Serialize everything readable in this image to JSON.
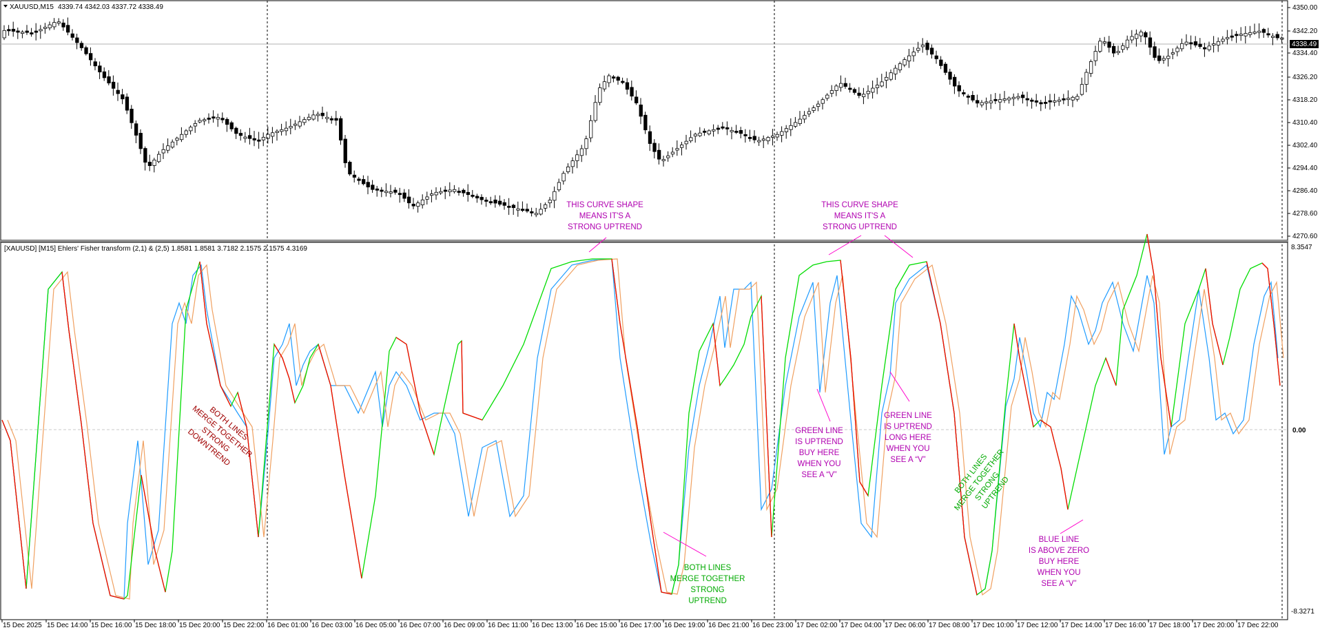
{
  "main_header": {
    "symbol": "XAUUSD,M15",
    "ohlc": "4339.74 4342.03 4337.72 4338.49"
  },
  "indicator_header": {
    "text": "[XAUUSD] [M15] Ehlers' Fisher transform (2,1) & (2,5) 1.8581 1.8581 3.7182 2.1575 2.1575 4.3169"
  },
  "price_axis": {
    "labels": [
      "4350.00",
      "4342.20",
      "4334.40",
      "4326.20",
      "4318.20",
      "4310.40",
      "4302.40",
      "4294.40",
      "4286.40",
      "4278.60",
      "4270.60"
    ],
    "current_price": "4338.49"
  },
  "indicator_axis": {
    "top": "8.3547",
    "zero": "0.00",
    "bottom": "-8.3271"
  },
  "time_axis": {
    "labels": [
      "15 Dec 2025",
      "15 Dec 14:00",
      "15 Dec 16:00",
      "15 Dec 18:00",
      "15 Dec 20:00",
      "15 Dec 22:00",
      "16 Dec 01:00",
      "16 Dec 03:00",
      "16 Dec 05:00",
      "16 Dec 07:00",
      "16 Dec 09:00",
      "16 Dec 11:00",
      "16 Dec 13:00",
      "16 Dec 15:00",
      "16 Dec 17:00",
      "16 Dec 19:00",
      "16 Dec 21:00",
      "16 Dec 23:00",
      "17 Dec 02:00",
      "17 Dec 04:00",
      "17 Dec 06:00",
      "17 Dec 08:00",
      "17 Dec 10:00",
      "17 Dec 12:00",
      "17 Dec 14:00",
      "17 Dec 16:00",
      "17 Dec 18:00",
      "17 Dec 20:00",
      "17 Dec 22:00"
    ]
  },
  "annotations": {
    "strong_uptrend_1": [
      "THIS  CURVE SHAPE",
      "MEANS IT'S A",
      "STRONG UPTREND"
    ],
    "strong_uptrend_2": [
      "THIS  CURVE SHAPE",
      "MEANS IT'S A",
      "STRONG UPTREND"
    ],
    "downtrend": [
      "BOTH LINES",
      "MERGE  TOGETHER",
      "STRONG",
      "DOWNTREND"
    ],
    "merge_uptrend_1": [
      "BOTH LINES",
      "MERGE  TOGETHER",
      "STRONG",
      "UPTREND"
    ],
    "green_v_1": [
      "GREEN LINE",
      "IS UPTREND",
      "BUY HERE",
      "WHEN YOU",
      "SEE A “V”"
    ],
    "green_v_2": [
      "GREEN LINE",
      "IS UPTREND",
      "LONG HERE",
      "WHEN YOU",
      "SEE A “V”"
    ],
    "merge_uptrend_2": [
      "BOTH LINES",
      "MERGE  TOGETHER",
      "STRONG",
      "UPTREND"
    ],
    "blue_above_zero": [
      "BLUE LINE",
      "IS ABOVE ZERO",
      "BUY HERE",
      "WHEN  YOU",
      "SEE A “V”"
    ]
  },
  "colors": {
    "fisher_green": "#00dd00",
    "fisher_red": "#ff0000",
    "signal_blue": "#1e9bff",
    "signal_orange": "#f0a060",
    "annotation_magenta": "#b000b0",
    "annotation_darkred": "#a00000",
    "annotation_green": "#00aa00",
    "bull_candle": "#ffffff",
    "bear_candle": "#000000"
  }
}
